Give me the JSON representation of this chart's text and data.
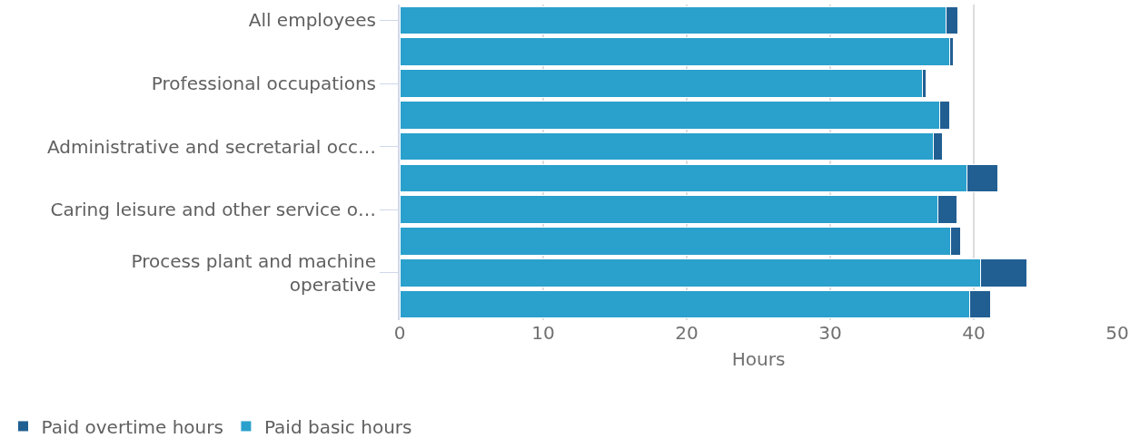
{
  "chart_data": {
    "type": "bar",
    "orientation": "horizontal",
    "stacked": true,
    "categories": [
      "All employees",
      null,
      "Professional occupations",
      null,
      "Administrative and secretarial occ…",
      null,
      "Caring leisure and other service o…",
      null,
      "Process plant and machine\noperative",
      null
    ],
    "series": [
      {
        "name": "Paid basic hours",
        "color": "#2aa0cc",
        "values": [
          38.1,
          38.3,
          36.4,
          37.6,
          37.2,
          39.5,
          37.5,
          38.4,
          40.5,
          39.7
        ]
      },
      {
        "name": "Paid overtime hours",
        "color": "#215f93",
        "values": [
          0.8,
          0.3,
          0.3,
          0.7,
          0.6,
          2.2,
          1.3,
          0.7,
          3.2,
          1.5
        ]
      }
    ],
    "xlabel": "Hours",
    "xlim": [
      0,
      50
    ],
    "xticks": [
      0,
      10,
      20,
      30,
      40,
      50
    ],
    "grid": "x",
    "legend": "bottom left"
  }
}
